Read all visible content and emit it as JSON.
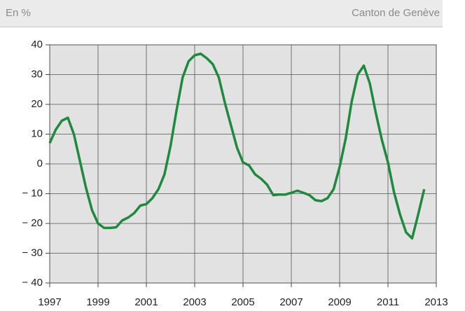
{
  "header": {
    "left": "En %",
    "right": "Canton de Genève"
  },
  "chart_data": {
    "type": "line",
    "x": [
      1997,
      1997.25,
      1997.5,
      1997.75,
      1998,
      1998.25,
      1998.5,
      1998.75,
      1999,
      1999.25,
      1999.5,
      1999.75,
      2000,
      2000.25,
      2000.5,
      2000.75,
      2001,
      2001.25,
      2001.5,
      2001.75,
      2002,
      2002.25,
      2002.5,
      2002.75,
      2003,
      2003.25,
      2003.5,
      2003.75,
      2004,
      2004.25,
      2004.5,
      2004.75,
      2005,
      2005.25,
      2005.5,
      2005.75,
      2006,
      2006.25,
      2006.5,
      2006.75,
      2007,
      2007.25,
      2007.5,
      2007.75,
      2008,
      2008.25,
      2008.5,
      2008.75,
      2009,
      2009.25,
      2009.5,
      2009.75,
      2010,
      2010.25,
      2010.5,
      2010.75,
      2011,
      2011.25,
      2011.5,
      2011.75,
      2012,
      2012.25,
      2012.5
    ],
    "series": [
      {
        "color": "#1e8a3c",
        "values": [
          7,
          11.5,
          14.5,
          15.5,
          10,
          1,
          -8,
          -15.5,
          -20,
          -21.5,
          -21.5,
          -21.3,
          -19,
          -18,
          -16.5,
          -14,
          -13.5,
          -11.5,
          -8.5,
          -3.5,
          6,
          18,
          29,
          34.5,
          36.5,
          37,
          35.5,
          33.5,
          29,
          20.5,
          13,
          5.5,
          0.5,
          -0.5,
          -3.5,
          -5,
          -7,
          -10.5,
          -10.3,
          -10.3,
          -9.7,
          -9,
          -9.7,
          -10.5,
          -12.2,
          -12.5,
          -11.5,
          -8.5,
          -1,
          8.5,
          21,
          30,
          33,
          27,
          17,
          8,
          0.5,
          -9.5,
          -17,
          -23,
          -25,
          -17,
          -8.5
        ]
      }
    ],
    "xlim": [
      1997,
      2013
    ],
    "xticks": [
      1997,
      1999,
      2001,
      2003,
      2005,
      2007,
      2009,
      2011,
      2013
    ],
    "ylim": [
      -40,
      40
    ],
    "yticks": [
      {
        "value": -40,
        "label": "− 40"
      },
      {
        "value": -30,
        "label": "− 30"
      },
      {
        "value": -20,
        "label": "− 20"
      },
      {
        "value": -10,
        "label": "− 10"
      },
      0,
      10,
      20,
      30,
      40
    ],
    "grid": true
  }
}
